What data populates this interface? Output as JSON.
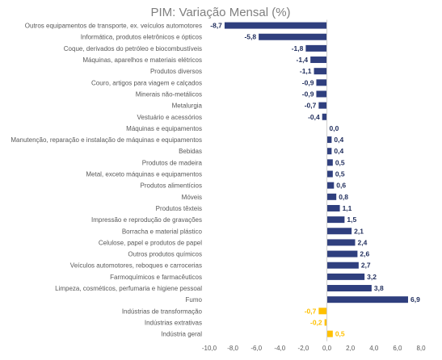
{
  "chart_data": {
    "type": "bar",
    "orientation": "horizontal",
    "title": "PIM: Variação Mensal (%)",
    "xlabel": "",
    "ylabel": "",
    "xlim": [
      -10,
      8
    ],
    "x_ticks": [
      "-10,0",
      "-8,0",
      "-6,0",
      "-4,0",
      "-2,0",
      "0,0",
      "2,0",
      "4,0",
      "6,0",
      "8,0"
    ],
    "grid": false,
    "legend": "none",
    "colors": {
      "sector": "#2f3f7e",
      "aggregate": "#ffc000"
    },
    "categories": [
      "Outros equipamentos de transporte, ex. veículos automotores",
      "Informática, produtos eletrônicos e ópticos",
      "Coque, derivados do petróleo e biocombustíveis",
      "Máquinas, aparelhos e materiais elétricos",
      "Produtos diversos",
      "Couro, artigos para viagem e calçados",
      "Minerais não-metálicos",
      "Metalurgia",
      "Vestuário e acessórios",
      "Máquinas e equipamentos",
      "Manutenção, reparação e instalação de máquinas e equipamentos",
      "Bebidas",
      "Produtos de madeira",
      "Metal, exceto máquinas e equipamentos",
      "Produtos alimentícios",
      "Móveis",
      "Produtos têxteis",
      "Impressão e reprodução de gravações",
      "Borracha e material plástico",
      "Celulose, papel e produtos de papel",
      "Outros produtos químicos",
      "Veículos automotores, reboques e carrocerias",
      "Farmoquímicos e farmacêuticos",
      "Limpeza, cosméticos, perfumaria e higiene pessoal",
      "Fumo",
      "Indústrias de transformação",
      "Indústrias extrativas",
      "Indústria geral"
    ],
    "values": [
      -8.7,
      -5.8,
      -1.8,
      -1.4,
      -1.1,
      -0.9,
      -0.9,
      -0.7,
      -0.4,
      0.0,
      0.4,
      0.4,
      0.5,
      0.5,
      0.6,
      0.8,
      1.1,
      1.5,
      2.1,
      2.4,
      2.6,
      2.7,
      3.2,
      3.8,
      6.9,
      -0.7,
      -0.2,
      0.5
    ],
    "value_labels": [
      "-8,7",
      "-5,8",
      "-1,8",
      "-1,4",
      "-1,1",
      "-0,9",
      "-0,9",
      "-0,7",
      "-0,4",
      "0,0",
      "0,4",
      "0,4",
      "0,5",
      "0,5",
      "0,6",
      "0,8",
      "1,1",
      "1,5",
      "2,1",
      "2,4",
      "2,6",
      "2,7",
      "3,2",
      "3,8",
      "6,9",
      "-0,7",
      "-0,2",
      "0,5"
    ],
    "groups": [
      "sector",
      "sector",
      "sector",
      "sector",
      "sector",
      "sector",
      "sector",
      "sector",
      "sector",
      "sector",
      "sector",
      "sector",
      "sector",
      "sector",
      "sector",
      "sector",
      "sector",
      "sector",
      "sector",
      "sector",
      "sector",
      "sector",
      "sector",
      "sector",
      "sector",
      "aggregate",
      "aggregate",
      "aggregate"
    ]
  }
}
